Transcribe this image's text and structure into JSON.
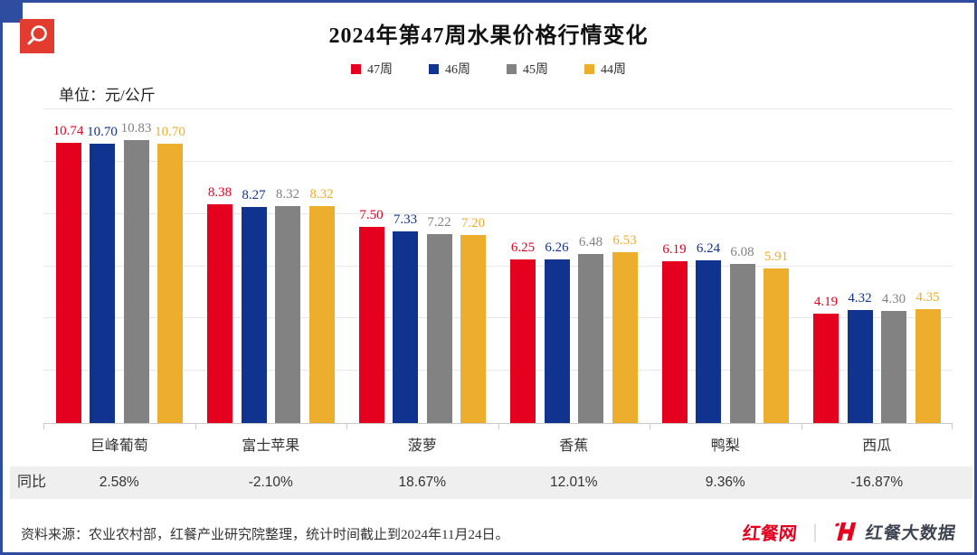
{
  "header": {
    "title": "2024年第47周水果价格行情变化",
    "unit_label": "单位：元/公斤"
  },
  "colors": {
    "week47_red": "#e60020",
    "week46_blue": "#10338f",
    "week45_gray": "#828282",
    "week44_yellow": "#edad2d",
    "border_blue": "#2e4da0",
    "icon_bg_red": "#e23c30",
    "gridline": "#e7e7e7",
    "yoy_row_bg": "#efefef"
  },
  "chart_data": {
    "type": "bar",
    "title": "2024年第47周水果价格行情变化",
    "unit": "元/公斤",
    "categories": [
      "巨峰葡萄",
      "富士苹果",
      "菠萝",
      "香蕉",
      "鸭梨",
      "西瓜"
    ],
    "series": [
      {
        "name": "47周",
        "color": "#e60020",
        "values": [
          10.74,
          8.38,
          7.5,
          6.25,
          6.19,
          4.19
        ]
      },
      {
        "name": "46周",
        "color": "#10338f",
        "values": [
          10.7,
          8.27,
          7.33,
          6.26,
          6.24,
          4.32
        ]
      },
      {
        "name": "45周",
        "color": "#828282",
        "values": [
          10.83,
          8.32,
          7.22,
          6.48,
          6.08,
          4.3
        ]
      },
      {
        "name": "44周",
        "color": "#edad2d",
        "values": [
          10.7,
          8.32,
          7.2,
          6.53,
          5.91,
          4.35
        ]
      }
    ],
    "ylim": [
      0,
      12
    ],
    "grid_step": 2,
    "grid": true,
    "legend_position": "top",
    "value_labels": true,
    "yoy_row": {
      "label": "同比",
      "values": [
        "2.58%",
        "-2.10%",
        "18.67%",
        "12.01%",
        "9.36%",
        "-16.87%"
      ]
    }
  },
  "footer": {
    "source": "资料来源：农业农村部，红餐产业研究院整理，统计时间截止到2024年11月24日。",
    "logo_left": "红餐网",
    "logo_divider": "｜",
    "logo_right": "红餐大数据"
  }
}
